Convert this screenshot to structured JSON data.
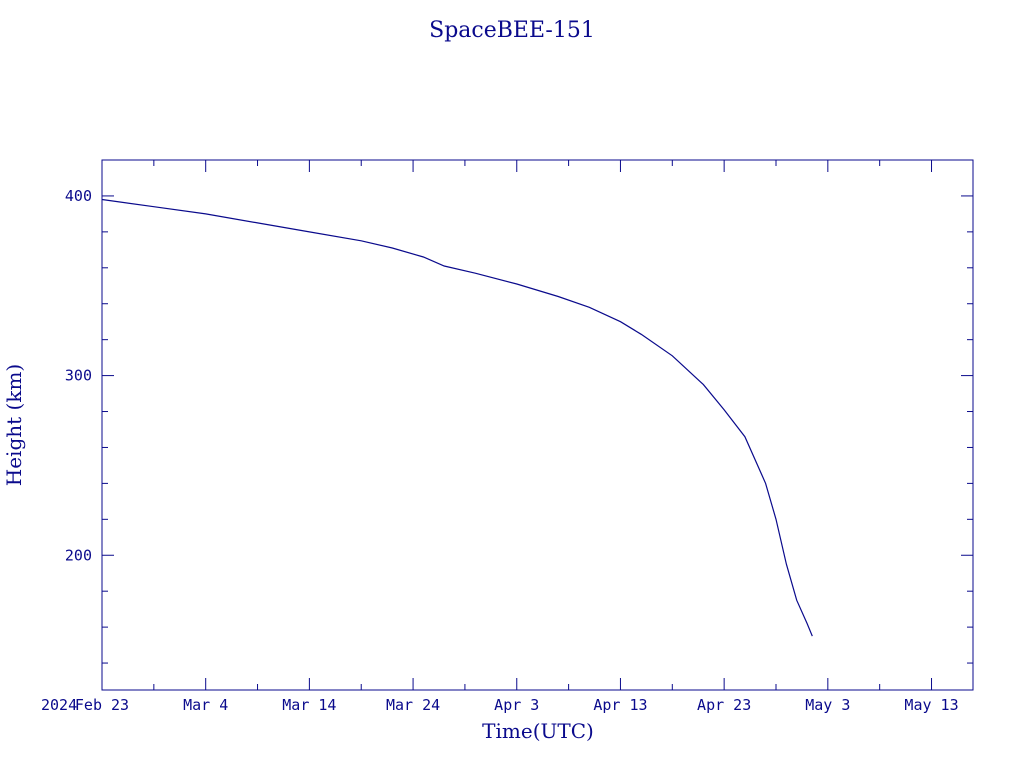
{
  "chart_data": {
    "type": "line",
    "title": "SpaceBEE-151",
    "xlabel": "Time(UTC)",
    "ylabel": "Height (km)",
    "year_label": "2024",
    "colors": {
      "line": "#0a0a8c",
      "axes": "#0a0a8c",
      "background": "#ffffff"
    },
    "grid": false,
    "legend": "none",
    "xlim": [
      "2024-02-23",
      "2024-05-17"
    ],
    "ylim": [
      125,
      420
    ],
    "x_ticks": [
      {
        "date": "2024-02-23",
        "label": "Feb 23"
      },
      {
        "date": "2024-03-04",
        "label": "Mar  4"
      },
      {
        "date": "2024-03-14",
        "label": "Mar 14"
      },
      {
        "date": "2024-03-24",
        "label": "Mar 24"
      },
      {
        "date": "2024-04-03",
        "label": "Apr  3"
      },
      {
        "date": "2024-04-13",
        "label": "Apr 13"
      },
      {
        "date": "2024-04-23",
        "label": "Apr 23"
      },
      {
        "date": "2024-05-03",
        "label": "May  3"
      },
      {
        "date": "2024-05-13",
        "label": "May 13"
      }
    ],
    "y_ticks": [
      {
        "value": 200,
        "label": "200"
      },
      {
        "value": 300,
        "label": "300"
      },
      {
        "value": 400,
        "label": "400"
      }
    ],
    "series": [
      {
        "x": [
          "2024-02-23",
          "2024-02-28",
          "2024-03-04",
          "2024-03-09",
          "2024-03-14",
          "2024-03-19",
          "2024-03-22",
          "2024-03-25",
          "2024-03-27",
          "2024-03-30",
          "2024-04-03",
          "2024-04-07",
          "2024-04-10",
          "2024-04-13",
          "2024-04-15",
          "2024-04-18",
          "2024-04-21",
          "2024-04-23",
          "2024-04-25",
          "2024-04-27",
          "2024-04-28",
          "2024-04-29",
          "2024-04-30",
          "2024-05-01",
          "2024-05-01T12:00"
        ],
        "y": [
          398,
          394,
          390,
          385,
          380,
          375,
          371,
          366,
          361,
          357,
          351,
          344,
          338,
          330,
          323,
          311,
          295,
          281,
          266,
          240,
          220,
          195,
          175,
          162,
          155
        ]
      }
    ]
  }
}
